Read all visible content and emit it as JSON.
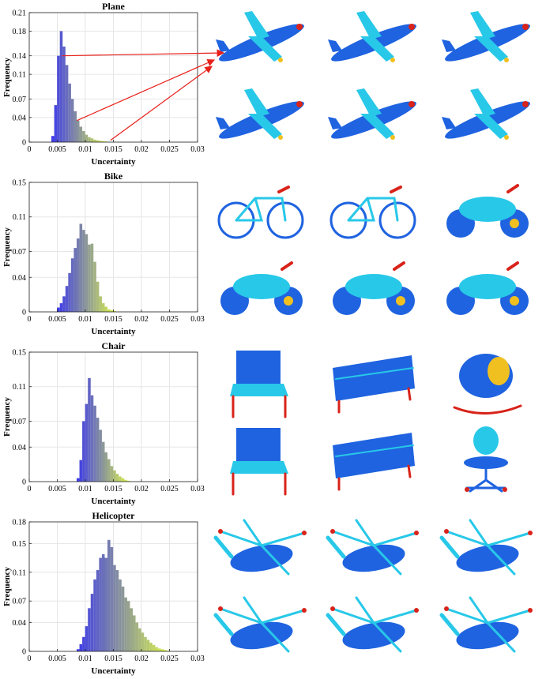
{
  "chart_data": [
    {
      "type": "bar",
      "title": "Plane",
      "xlabel": "Uncertainty",
      "ylabel": "Frequency",
      "xlim": [
        0,
        0.03
      ],
      "ylim": [
        0,
        0.21
      ],
      "x_ticks": [
        "0",
        "0.005",
        "0.01",
        "0.015",
        "0.02",
        "0.025",
        "0.03"
      ],
      "y_ticks": [
        "0",
        "0.04",
        "0.07",
        "0.11",
        "0.14",
        "0.18",
        "0.21"
      ],
      "bin_width": 0.0005,
      "bins": [
        {
          "x": 0.0042,
          "y": 0.01
        },
        {
          "x": 0.0047,
          "y": 0.06
        },
        {
          "x": 0.0052,
          "y": 0.14
        },
        {
          "x": 0.0057,
          "y": 0.18
        },
        {
          "x": 0.0062,
          "y": 0.155
        },
        {
          "x": 0.0067,
          "y": 0.125
        },
        {
          "x": 0.0072,
          "y": 0.095
        },
        {
          "x": 0.0077,
          "y": 0.07
        },
        {
          "x": 0.0082,
          "y": 0.05
        },
        {
          "x": 0.0087,
          "y": 0.035
        },
        {
          "x": 0.0092,
          "y": 0.025
        },
        {
          "x": 0.0097,
          "y": 0.018
        },
        {
          "x": 0.0102,
          "y": 0.012
        },
        {
          "x": 0.0107,
          "y": 0.008
        },
        {
          "x": 0.0112,
          "y": 0.006
        },
        {
          "x": 0.0117,
          "y": 0.004
        },
        {
          "x": 0.0122,
          "y": 0.003
        },
        {
          "x": 0.0127,
          "y": 0.002
        },
        {
          "x": 0.0132,
          "y": 0.0015
        },
        {
          "x": 0.0137,
          "y": 0.001
        }
      ],
      "annotation_arrow_x": [
        0.0058,
        0.0085,
        0.0145
      ]
    },
    {
      "type": "bar",
      "title": "Bike",
      "xlabel": "Uncertainty",
      "ylabel": "Frequency",
      "xlim": [
        0,
        0.03
      ],
      "ylim": [
        0,
        0.15
      ],
      "x_ticks": [
        "0",
        "0.005",
        "0.01",
        "0.015",
        "0.02",
        "0.025",
        "0.03"
      ],
      "y_ticks": [
        "0",
        "0.04",
        "0.07",
        "0.11",
        "0.15"
      ],
      "bin_width": 0.0005,
      "bins": [
        {
          "x": 0.0052,
          "y": 0.005
        },
        {
          "x": 0.0057,
          "y": 0.01
        },
        {
          "x": 0.0062,
          "y": 0.018
        },
        {
          "x": 0.0067,
          "y": 0.03
        },
        {
          "x": 0.0072,
          "y": 0.045
        },
        {
          "x": 0.0077,
          "y": 0.062
        },
        {
          "x": 0.0082,
          "y": 0.074
        },
        {
          "x": 0.0087,
          "y": 0.085
        },
        {
          "x": 0.0092,
          "y": 0.102
        },
        {
          "x": 0.0097,
          "y": 0.095
        },
        {
          "x": 0.0102,
          "y": 0.09
        },
        {
          "x": 0.0107,
          "y": 0.078
        },
        {
          "x": 0.0112,
          "y": 0.079
        },
        {
          "x": 0.0117,
          "y": 0.058
        },
        {
          "x": 0.0122,
          "y": 0.035
        },
        {
          "x": 0.0127,
          "y": 0.018
        },
        {
          "x": 0.0132,
          "y": 0.01
        },
        {
          "x": 0.0137,
          "y": 0.006
        },
        {
          "x": 0.0142,
          "y": 0.003
        },
        {
          "x": 0.0147,
          "y": 0.002
        },
        {
          "x": 0.0152,
          "y": 0.001
        }
      ]
    },
    {
      "type": "bar",
      "title": "Chair",
      "xlabel": "Uncertainty",
      "ylabel": "Frequency",
      "xlim": [
        0,
        0.03
      ],
      "ylim": [
        0,
        0.15
      ],
      "x_ticks": [
        "0",
        "0.005",
        "0.01",
        "0.015",
        "0.02",
        "0.025",
        "0.03"
      ],
      "y_ticks": [
        "0",
        "0.04",
        "0.07",
        "0.11",
        "0.15"
      ],
      "bin_width": 0.0005,
      "bins": [
        {
          "x": 0.0087,
          "y": 0.004
        },
        {
          "x": 0.0092,
          "y": 0.025
        },
        {
          "x": 0.0097,
          "y": 0.07
        },
        {
          "x": 0.0102,
          "y": 0.09
        },
        {
          "x": 0.0107,
          "y": 0.12
        },
        {
          "x": 0.0112,
          "y": 0.1
        },
        {
          "x": 0.0117,
          "y": 0.088
        },
        {
          "x": 0.0122,
          "y": 0.074
        },
        {
          "x": 0.0127,
          "y": 0.06
        },
        {
          "x": 0.0132,
          "y": 0.046
        },
        {
          "x": 0.0137,
          "y": 0.034
        },
        {
          "x": 0.0142,
          "y": 0.026
        },
        {
          "x": 0.0147,
          "y": 0.018
        },
        {
          "x": 0.0152,
          "y": 0.013
        },
        {
          "x": 0.0157,
          "y": 0.009
        },
        {
          "x": 0.0162,
          "y": 0.006
        },
        {
          "x": 0.0167,
          "y": 0.004
        },
        {
          "x": 0.0172,
          "y": 0.002
        },
        {
          "x": 0.0177,
          "y": 0.001
        }
      ]
    },
    {
      "type": "bar",
      "title": "Helicopter",
      "xlabel": "Uncertainty",
      "ylabel": "Frequency",
      "xlim": [
        0,
        0.03
      ],
      "ylim": [
        0,
        0.18
      ],
      "x_ticks": [
        "0",
        "0.005",
        "0.01",
        "0.015",
        "0.02",
        "0.025",
        "0.03"
      ],
      "y_ticks": [
        "0",
        "0.04",
        "0.07",
        "0.11",
        "0.15",
        "0.18"
      ],
      "bin_width": 0.0005,
      "bins": [
        {
          "x": 0.0087,
          "y": 0.003
        },
        {
          "x": 0.0092,
          "y": 0.01
        },
        {
          "x": 0.0097,
          "y": 0.02
        },
        {
          "x": 0.0102,
          "y": 0.035
        },
        {
          "x": 0.0107,
          "y": 0.06
        },
        {
          "x": 0.0112,
          "y": 0.08
        },
        {
          "x": 0.0117,
          "y": 0.1
        },
        {
          "x": 0.0122,
          "y": 0.113
        },
        {
          "x": 0.0127,
          "y": 0.13
        },
        {
          "x": 0.0132,
          "y": 0.135
        },
        {
          "x": 0.0137,
          "y": 0.13
        },
        {
          "x": 0.0142,
          "y": 0.155
        },
        {
          "x": 0.0147,
          "y": 0.145
        },
        {
          "x": 0.0152,
          "y": 0.12
        },
        {
          "x": 0.0157,
          "y": 0.113
        },
        {
          "x": 0.0162,
          "y": 0.1
        },
        {
          "x": 0.0167,
          "y": 0.09
        },
        {
          "x": 0.0172,
          "y": 0.075
        },
        {
          "x": 0.0177,
          "y": 0.07
        },
        {
          "x": 0.0182,
          "y": 0.06
        },
        {
          "x": 0.0187,
          "y": 0.05
        },
        {
          "x": 0.0192,
          "y": 0.04
        },
        {
          "x": 0.0197,
          "y": 0.032
        },
        {
          "x": 0.0202,
          "y": 0.026
        },
        {
          "x": 0.0207,
          "y": 0.02
        },
        {
          "x": 0.0212,
          "y": 0.016
        },
        {
          "x": 0.0217,
          "y": 0.012
        },
        {
          "x": 0.0222,
          "y": 0.009
        },
        {
          "x": 0.0227,
          "y": 0.006
        },
        {
          "x": 0.0232,
          "y": 0.004
        },
        {
          "x": 0.0237,
          "y": 0.003
        },
        {
          "x": 0.0242,
          "y": 0.002
        },
        {
          "x": 0.0247,
          "y": 0.001
        }
      ]
    }
  ],
  "thumbnails": [
    [
      "plane-point-cloud-icon",
      "plane-point-cloud-icon",
      "plane-point-cloud-icon",
      "plane-point-cloud-icon",
      "plane-point-cloud-icon",
      "plane-point-cloud-icon"
    ],
    [
      "bicycle-point-cloud-icon",
      "bmx-bike-point-cloud-icon",
      "motorbike-point-cloud-icon",
      "motorbike-point-cloud-icon",
      "motorbike-point-cloud-icon",
      "motorbike-point-cloud-icon"
    ],
    [
      "armchair-point-cloud-icon",
      "bench-point-cloud-icon",
      "rocking-chair-point-cloud-icon",
      "armchair-point-cloud-icon",
      "bench-point-cloud-icon",
      "office-chair-point-cloud-icon"
    ],
    [
      "helicopter-point-cloud-icon",
      "helicopter-point-cloud-icon",
      "helicopter-point-cloud-icon",
      "helicopter-point-cloud-icon",
      "helicopter-point-cloud-icon",
      "helicopter-point-cloud-icon"
    ]
  ],
  "colors": {
    "bar_low": "#3f3ce6",
    "bar_high": "#d9f24a",
    "arrow": "#e8201a",
    "cloud_body": "#1f63e0",
    "cloud_mid": "#28c8e8",
    "cloud_warm": "#f0c020",
    "cloud_hot": "#d8231a"
  }
}
